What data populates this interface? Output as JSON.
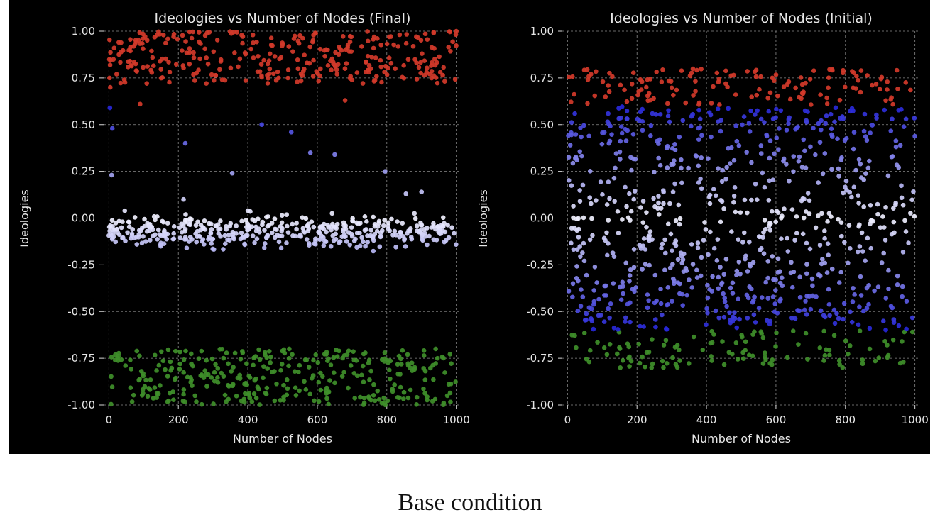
{
  "caption": "Base condition",
  "chart_data": [
    {
      "type": "scatter",
      "title": "Ideologies vs Number of Nodes (Final)",
      "xlabel": "Number of Nodes",
      "ylabel": "Ideologies",
      "xlim": [
        -15,
        1015
      ],
      "ylim": [
        -1.0,
        1.0
      ],
      "xticks": [
        0,
        200,
        400,
        600,
        800,
        1000
      ],
      "yticks": [
        -1.0,
        -0.75,
        -0.5,
        -0.25,
        0.0,
        0.25,
        0.5,
        0.75,
        1.0
      ],
      "grid": true,
      "colors": {
        "background": "#000000",
        "grid": "#8a8a8a",
        "red": "#d33a2a",
        "blue": "#2b2bd6",
        "light": "#c8c8f0",
        "green": "#3f8f2a"
      },
      "note": "points colored by ideology value: green (<-0.6), blue to white gradient (-0.6 to 0.6), red (>0.6)",
      "outlier_points": [
        {
          "x": 2,
          "y": 0.75
        },
        {
          "x": 4,
          "y": 0.7
        },
        {
          "x": 3,
          "y": 0.59
        },
        {
          "x": 10,
          "y": 0.48
        },
        {
          "x": 8,
          "y": 0.23
        },
        {
          "x": 90,
          "y": 0.61
        },
        {
          "x": 220,
          "y": 0.4
        },
        {
          "x": 355,
          "y": 0.24
        },
        {
          "x": 440,
          "y": 0.5
        },
        {
          "x": 525,
          "y": 0.46
        },
        {
          "x": 580,
          "y": 0.35
        },
        {
          "x": 650,
          "y": 0.34
        },
        {
          "x": 795,
          "y": 0.25
        },
        {
          "x": 855,
          "y": 0.13
        },
        {
          "x": 900,
          "y": 0.14
        },
        {
          "x": 215,
          "y": 0.1
        },
        {
          "x": 400,
          "y": 0.04
        },
        {
          "x": 680,
          "y": 0.63
        }
      ],
      "clusters": [
        {
          "name": "red",
          "x_range": [
            0,
            1000
          ],
          "y_range": [
            0.72,
            1.0
          ],
          "count": 320
        },
        {
          "name": "near-zero",
          "x_range": [
            0,
            1000
          ],
          "y_range": [
            -0.17,
            0.03
          ],
          "count": 420
        },
        {
          "name": "green",
          "x_range": [
            0,
            1000
          ],
          "y_range": [
            -1.0,
            -0.7
          ],
          "count": 330
        }
      ]
    },
    {
      "type": "scatter",
      "title": "Ideologies vs Number of Nodes (Initial)",
      "xlabel": "Number of Nodes",
      "ylabel": "Ideologies",
      "xlim": [
        -15,
        1015
      ],
      "ylim": [
        -1.0,
        1.0
      ],
      "xticks": [
        0,
        200,
        400,
        600,
        800,
        1000
      ],
      "yticks": [
        -1.0,
        -0.75,
        -0.5,
        -0.25,
        0.0,
        0.25,
        0.5,
        0.75,
        1.0
      ],
      "grid": true,
      "colors": {
        "background": "#000000",
        "grid": "#8a8a8a",
        "red": "#d33a2a",
        "blue": "#2b2bd6",
        "light": "#c8c8f0",
        "green": "#3f8f2a"
      },
      "note": "uniform spread of ideologies roughly between -0.80 and 0.80 across 1000 nodes",
      "clusters": [
        {
          "name": "uniform",
          "x_range": [
            0,
            1000
          ],
          "y_range": [
            -0.8,
            0.8
          ],
          "count": 1000
        }
      ]
    }
  ]
}
